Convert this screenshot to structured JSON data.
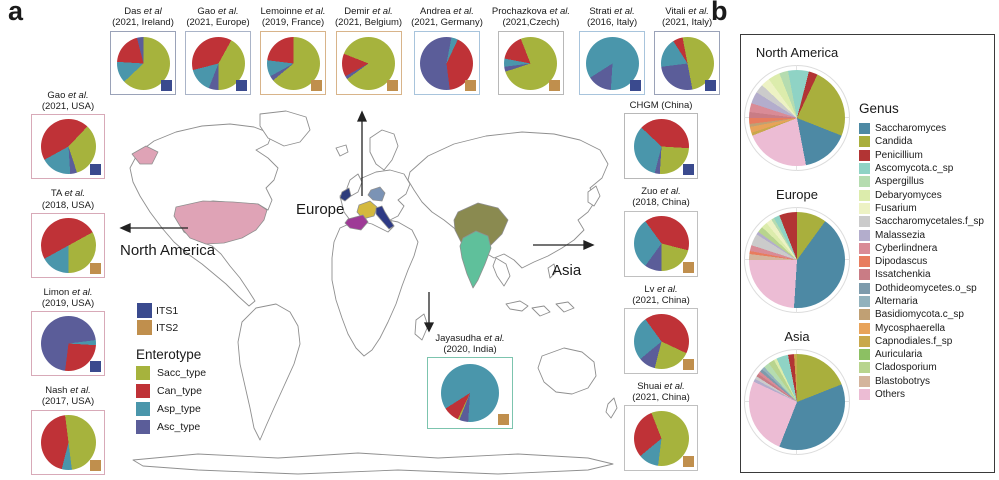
{
  "figure": {
    "panel_a_label": "a",
    "panel_b_label": "b"
  },
  "map_labels": {
    "europe": "Europe",
    "north_america": "North America",
    "asia": "Asia"
  },
  "map_colors": {
    "usa": "#dfa3b6",
    "ireland": "#2e3d7c",
    "france": "#d4b93e",
    "spain": "#9e3a96",
    "germany": "#7b93b5",
    "italy": "#2e3a85",
    "china": "#8a8a50",
    "india": "#5fc09b",
    "land": "#ffffff",
    "coast": "#8f8f8f"
  },
  "chart_data": {
    "type": "pie",
    "its_legend": [
      {
        "label": "ITS1",
        "color": "#3a4a8e"
      },
      {
        "label": "ITS2",
        "color": "#c08f4d"
      }
    ],
    "enterotype_legend": {
      "title": "Enterotype",
      "items": [
        {
          "key": "sacc",
          "label": "Sacc_type",
          "color": "#a6b33d"
        },
        {
          "key": "can",
          "label": "Can_type",
          "color": "#bf3237"
        },
        {
          "key": "asp",
          "label": "Asp_type",
          "color": "#4a96ab"
        },
        {
          "key": "asc",
          "label": "Asc_type",
          "color": "#5b5d99"
        }
      ]
    },
    "top_row": [
      {
        "name": "Das",
        "suffix": "et al",
        "line2": "(2021, Ireland)",
        "marker": "ITS1",
        "marker_color": "#3a4a8e",
        "border": "#9aa2b8",
        "slices": [
          {
            "c": "sacc",
            "v": 63
          },
          {
            "c": "asp",
            "v": 13
          },
          {
            "c": "can",
            "v": 20
          },
          {
            "c": "asc",
            "v": 4
          }
        ]
      },
      {
        "name": "Gao",
        "suffix": "et al.",
        "line2": "(2021, Europe)",
        "marker": "ITS1",
        "marker_color": "#3a4a8e",
        "border": "#aab4c8",
        "slices": [
          {
            "c": "can",
            "v": 8
          },
          {
            "c": "sacc",
            "v": 42
          },
          {
            "c": "asc",
            "v": 6
          },
          {
            "c": "asp",
            "v": 15
          },
          {
            "c": "can",
            "v": 29
          }
        ]
      },
      {
        "name": "Lemoinne",
        "suffix": "et al.",
        "line2": "(2019, France)",
        "marker": "ITS2",
        "marker_color": "#c08f4d",
        "border": "#d8b48a",
        "slices": [
          {
            "c": "sacc",
            "v": 64
          },
          {
            "c": "asc",
            "v": 3
          },
          {
            "c": "asp",
            "v": 10
          },
          {
            "c": "can",
            "v": 23
          }
        ]
      },
      {
        "name": "Demir",
        "suffix": "et al.",
        "line2": "(2021, Belgium)",
        "marker": "ITS2",
        "marker_color": "#c08f4d",
        "border": "#d8b48a",
        "slices": [
          {
            "c": "sacc",
            "v": 65
          },
          {
            "c": "asc",
            "v": 2
          },
          {
            "c": "can",
            "v": 14
          },
          {
            "c": "sacc",
            "v": 19
          }
        ]
      },
      {
        "name": "Andrea",
        "suffix": "et al.",
        "line2": "(2021, Germany)",
        "marker": "ITS2",
        "marker_color": "#c08f4d",
        "border": "#a8c4dc",
        "slices": [
          {
            "c": "asc",
            "v": 3
          },
          {
            "c": "asp",
            "v": 4
          },
          {
            "c": "can",
            "v": 41
          },
          {
            "c": "asc",
            "v": 52
          }
        ]
      },
      {
        "name": "Prochazkova",
        "suffix": "et al.",
        "line2": "(2021,Czech)",
        "marker": "ITS2",
        "marker_color": "#c08f4d",
        "border": "#b8b8b8",
        "slices": [
          {
            "c": "sacc",
            "v": 70
          },
          {
            "c": "asc",
            "v": 3
          },
          {
            "c": "asp",
            "v": 5
          },
          {
            "c": "can",
            "v": 16
          },
          {
            "c": "sacc",
            "v": 6
          }
        ]
      },
      {
        "name": "Strati",
        "suffix": "et al.",
        "line2": "(2016, Italy)",
        "marker": "ITS1",
        "marker_color": "#3a4a8e",
        "border": "#a8c4dc",
        "slices": [
          {
            "c": "asp",
            "v": 51
          },
          {
            "c": "asc",
            "v": 15
          },
          {
            "c": "asp",
            "v": 34
          }
        ]
      },
      {
        "name": "Vitali",
        "suffix": "et al.",
        "line2": "(2021, Italy)",
        "marker": "ITS1",
        "marker_color": "#3a4a8e",
        "border": "#9aa2b8",
        "slices": [
          {
            "c": "sacc",
            "v": 47
          },
          {
            "c": "asc",
            "v": 26
          },
          {
            "c": "asp",
            "v": 18
          },
          {
            "c": "can",
            "v": 6
          },
          {
            "c": "sacc",
            "v": 3
          }
        ]
      }
    ],
    "left_col": [
      {
        "name": "Gao",
        "suffix": "et al.",
        "line2": "(2021, USA)",
        "marker": "ITS1",
        "marker_color": "#3a4a8e",
        "border": "#d8aab8",
        "slices": [
          {
            "c": "can",
            "v": 12
          },
          {
            "c": "sacc",
            "v": 33
          },
          {
            "c": "asc",
            "v": 4
          },
          {
            "c": "asp",
            "v": 18
          },
          {
            "c": "can",
            "v": 33
          }
        ]
      },
      {
        "name": "TA",
        "suffix": "et al.",
        "line2": "(2018, USA)",
        "marker": "ITS2",
        "marker_color": "#c08f4d",
        "border": "#d8aab8",
        "slices": [
          {
            "c": "can",
            "v": 17
          },
          {
            "c": "sacc",
            "v": 33
          },
          {
            "c": "asp",
            "v": 17
          },
          {
            "c": "can",
            "v": 33
          }
        ]
      },
      {
        "name": "Limon",
        "suffix": "et al.",
        "line2": "(2019, USA)",
        "marker": "ITS1",
        "marker_color": "#3a4a8e",
        "border": "#d8aab8",
        "slices": [
          {
            "c": "asc",
            "v": 23
          },
          {
            "c": "asp",
            "v": 3
          },
          {
            "c": "can",
            "v": 26
          },
          {
            "c": "asc",
            "v": 48
          }
        ]
      },
      {
        "name": "Nash",
        "suffix": "et al.",
        "line2": "(2017, USA)",
        "marker": "ITS2",
        "marker_color": "#c08f4d",
        "border": "#d8aab8",
        "slices": [
          {
            "c": "sacc",
            "v": 48
          },
          {
            "c": "asp",
            "v": 6
          },
          {
            "c": "can",
            "v": 44
          },
          {
            "c": "sacc",
            "v": 2
          }
        ]
      }
    ],
    "right_col": [
      {
        "name": "CHGM (China)",
        "suffix": "",
        "line2": "",
        "marker": "ITS1",
        "marker_color": "#3a4a8e",
        "border": "#b8b8b8",
        "slices": [
          {
            "c": "can",
            "v": 26
          },
          {
            "c": "sacc",
            "v": 25
          },
          {
            "c": "asc",
            "v": 3
          },
          {
            "c": "asp",
            "v": 33
          },
          {
            "c": "can",
            "v": 13
          }
        ]
      },
      {
        "name": "Zuo",
        "suffix": "et al.",
        "line2": "(2018, China)",
        "marker": "ITS2",
        "marker_color": "#c08f4d",
        "border": "#c0c0c0",
        "slices": [
          {
            "c": "can",
            "v": 29
          },
          {
            "c": "sacc",
            "v": 21
          },
          {
            "c": "asc",
            "v": 10
          },
          {
            "c": "asp",
            "v": 30
          },
          {
            "c": "can",
            "v": 10
          }
        ]
      },
      {
        "name": "Lv",
        "suffix": "et al.",
        "line2": "(2021, China)",
        "marker": "ITS2",
        "marker_color": "#c08f4d",
        "border": "#c0c0c0",
        "slices": [
          {
            "c": "can",
            "v": 32
          },
          {
            "c": "sacc",
            "v": 22
          },
          {
            "c": "asc",
            "v": 10
          },
          {
            "c": "asp",
            "v": 26
          },
          {
            "c": "can",
            "v": 10
          }
        ]
      },
      {
        "name": "Shuai",
        "suffix": "et al.",
        "line2": "(2021, China)",
        "marker": "ITS2",
        "marker_color": "#c08f4d",
        "border": "#c0c0c0",
        "slices": [
          {
            "c": "sacc",
            "v": 52
          },
          {
            "c": "asp",
            "v": 12
          },
          {
            "c": "can",
            "v": 30
          },
          {
            "c": "sacc",
            "v": 6
          }
        ]
      }
    ],
    "india": {
      "name": "Jayasudha",
      "suffix": "et al.",
      "line2": "(2020, India)",
      "marker": "ITS2",
      "marker_color": "#c08f4d",
      "border": "#7cc4ae",
      "slices": [
        {
          "c": "asp",
          "v": 51
        },
        {
          "c": "asc",
          "v": 5
        },
        {
          "c": "sacc",
          "v": 1
        },
        {
          "c": "can",
          "v": 9
        },
        {
          "c": "asp",
          "v": 34
        }
      ]
    },
    "genus_legend": {
      "title": "Genus",
      "items": [
        {
          "name": "Saccharomyces",
          "color": "#4d89a4"
        },
        {
          "name": "Candida",
          "color": "#a9af3d"
        },
        {
          "name": "Penicillium",
          "color": "#b23434"
        },
        {
          "name": "Ascomycota.c_sp",
          "color": "#8fd3c5"
        },
        {
          "name": "Aspergillus",
          "color": "#b5dcb0"
        },
        {
          "name": "Debaryomyces",
          "color": "#dcecac"
        },
        {
          "name": "Fusarium",
          "color": "#edf2c4"
        },
        {
          "name": "Saccharomycetales.f_sp",
          "color": "#cbcbcb"
        },
        {
          "name": "Malassezia",
          "color": "#b3adcc"
        },
        {
          "name": "Cyberlindnera",
          "color": "#d98b96"
        },
        {
          "name": "Dipodascus",
          "color": "#e87c5e"
        },
        {
          "name": "Issatchenkia",
          "color": "#c97c85"
        },
        {
          "name": "Dothideomycetes.o_sp",
          "color": "#7d9bac"
        },
        {
          "name": "Alternaria",
          "color": "#92b2bd"
        },
        {
          "name": "Basidiomycota.c_sp",
          "color": "#c0a074"
        },
        {
          "name": "Mycosphaerella",
          "color": "#e8a35a"
        },
        {
          "name": "Capnodiales.f_sp",
          "color": "#c9a84c"
        },
        {
          "name": "Auricularia",
          "color": "#8cc063"
        },
        {
          "name": "Cladosporium",
          "color": "#b8d48e"
        },
        {
          "name": "Blastobotrys",
          "color": "#d4b49c"
        },
        {
          "name": "Others",
          "color": "#ecbcd4"
        }
      ]
    },
    "region_pies": [
      {
        "title": "North America",
        "slices": [
          {
            "c": "Ascomycota.c_sp",
            "v": 4
          },
          {
            "c": "Penicillium",
            "v": 3
          },
          {
            "c": "Candida",
            "v": 24
          },
          {
            "c": "Saccharomyces",
            "v": 16
          },
          {
            "c": "Others",
            "v": 22
          },
          {
            "c": "Capnodiales.f_sp",
            "v": 1
          },
          {
            "c": "Mycosphaerella",
            "v": 2
          },
          {
            "c": "Basidiomycota.c_sp",
            "v": 1
          },
          {
            "c": "Dipodascus",
            "v": 2
          },
          {
            "c": "Issatchenkia",
            "v": 2
          },
          {
            "c": "Cyberlindnera",
            "v": 3
          },
          {
            "c": "Malassezia",
            "v": 4
          },
          {
            "c": "Saccharomycetales.f_sp",
            "v": 3
          },
          {
            "c": "Fusarium",
            "v": 3
          },
          {
            "c": "Debaryomyces",
            "v": 4
          },
          {
            "c": "Aspergillus",
            "v": 3
          },
          {
            "c": "Ascomycota.c_sp",
            "v": 3
          }
        ]
      },
      {
        "title": "Europe",
        "slices": [
          {
            "c": "Candida",
            "v": 10
          },
          {
            "c": "Saccharomyces",
            "v": 41
          },
          {
            "c": "Others",
            "v": 24
          },
          {
            "c": "Blastobotrys",
            "v": 2
          },
          {
            "c": "Dipodascus",
            "v": 1
          },
          {
            "c": "Cyberlindnera",
            "v": 2
          },
          {
            "c": "Saccharomycetales.f_sp",
            "v": 4
          },
          {
            "c": "Malassezia",
            "v": 1
          },
          {
            "c": "Cladosporium",
            "v": 2
          },
          {
            "c": "Debaryomyces",
            "v": 2
          },
          {
            "c": "Fusarium",
            "v": 2
          },
          {
            "c": "Aspergillus",
            "v": 1
          },
          {
            "c": "Ascomycota.c_sp",
            "v": 2
          },
          {
            "c": "Penicillium",
            "v": 6
          }
        ]
      },
      {
        "title": "Asia",
        "slices": [
          {
            "c": "Candida",
            "v": 19
          },
          {
            "c": "Saccharomyces",
            "v": 37
          },
          {
            "c": "Others",
            "v": 26
          },
          {
            "c": "Malassezia",
            "v": 1
          },
          {
            "c": "Saccharomycetales.f_sp",
            "v": 1
          },
          {
            "c": "Issatchenkia",
            "v": 1
          },
          {
            "c": "Cyberlindnera",
            "v": 1
          },
          {
            "c": "Dothideomycetes.o_sp",
            "v": 1
          },
          {
            "c": "Alternaria",
            "v": 1
          },
          {
            "c": "Aspergillus",
            "v": 2
          },
          {
            "c": "Cladosporium",
            "v": 2
          },
          {
            "c": "Debaryomyces",
            "v": 1
          },
          {
            "c": "Ascomycota.c_sp",
            "v": 4
          },
          {
            "c": "Penicillium",
            "v": 2
          },
          {
            "c": "Capnodiales.f_sp",
            "v": 1
          }
        ]
      }
    ]
  }
}
